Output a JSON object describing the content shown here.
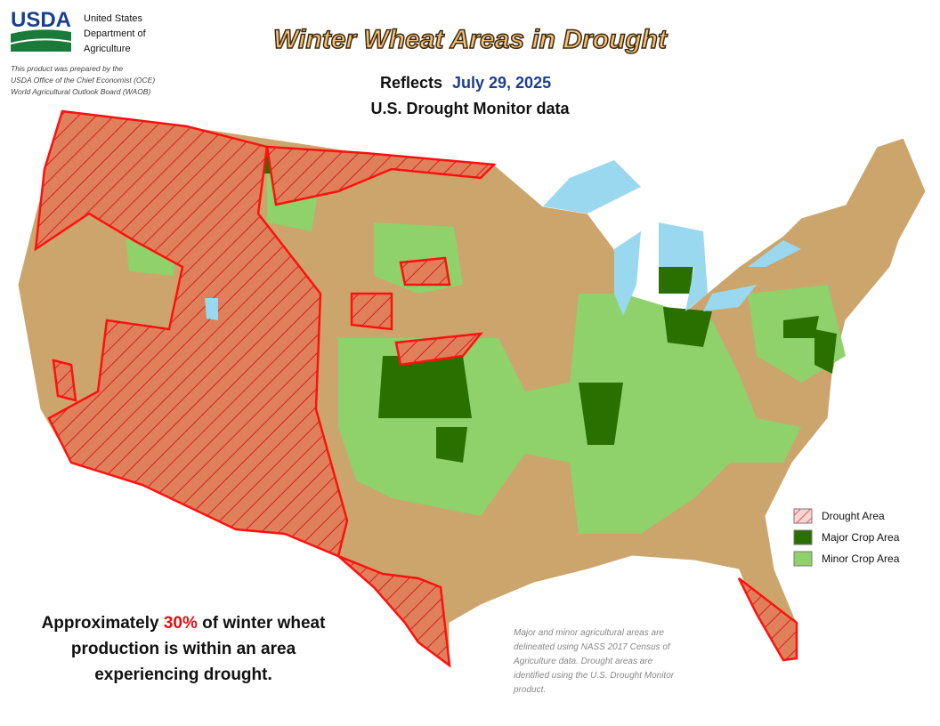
{
  "logo": {
    "mark": "USDA",
    "lines": [
      "United States",
      "Department of",
      "Agriculture"
    ]
  },
  "credit": [
    "This product was prepared by the",
    "USDA Office of the Chief Economist (OCE)",
    "World Agricultural Outlook Board (WAOB)"
  ],
  "header": {
    "title": "Winter Wheat Areas in Drought",
    "reflects": "Reflects",
    "date": "July 29, 2025",
    "source": "U.S. Drought Monitor data"
  },
  "legend": [
    "Drought Area",
    "Major Crop Area",
    "Minor Crop Area"
  ],
  "statement": {
    "before": "Approximately",
    "share": "30%",
    "after": "of winter wheat",
    "line2": "production is within an area",
    "line3": "experiencing drought."
  },
  "footnote": [
    "Major and minor agricultural areas are",
    "delineated using NASS 2017 Census of",
    "Agriculture data.  Drought areas are",
    "identified using the U.S. Drought Monitor",
    "product."
  ]
}
